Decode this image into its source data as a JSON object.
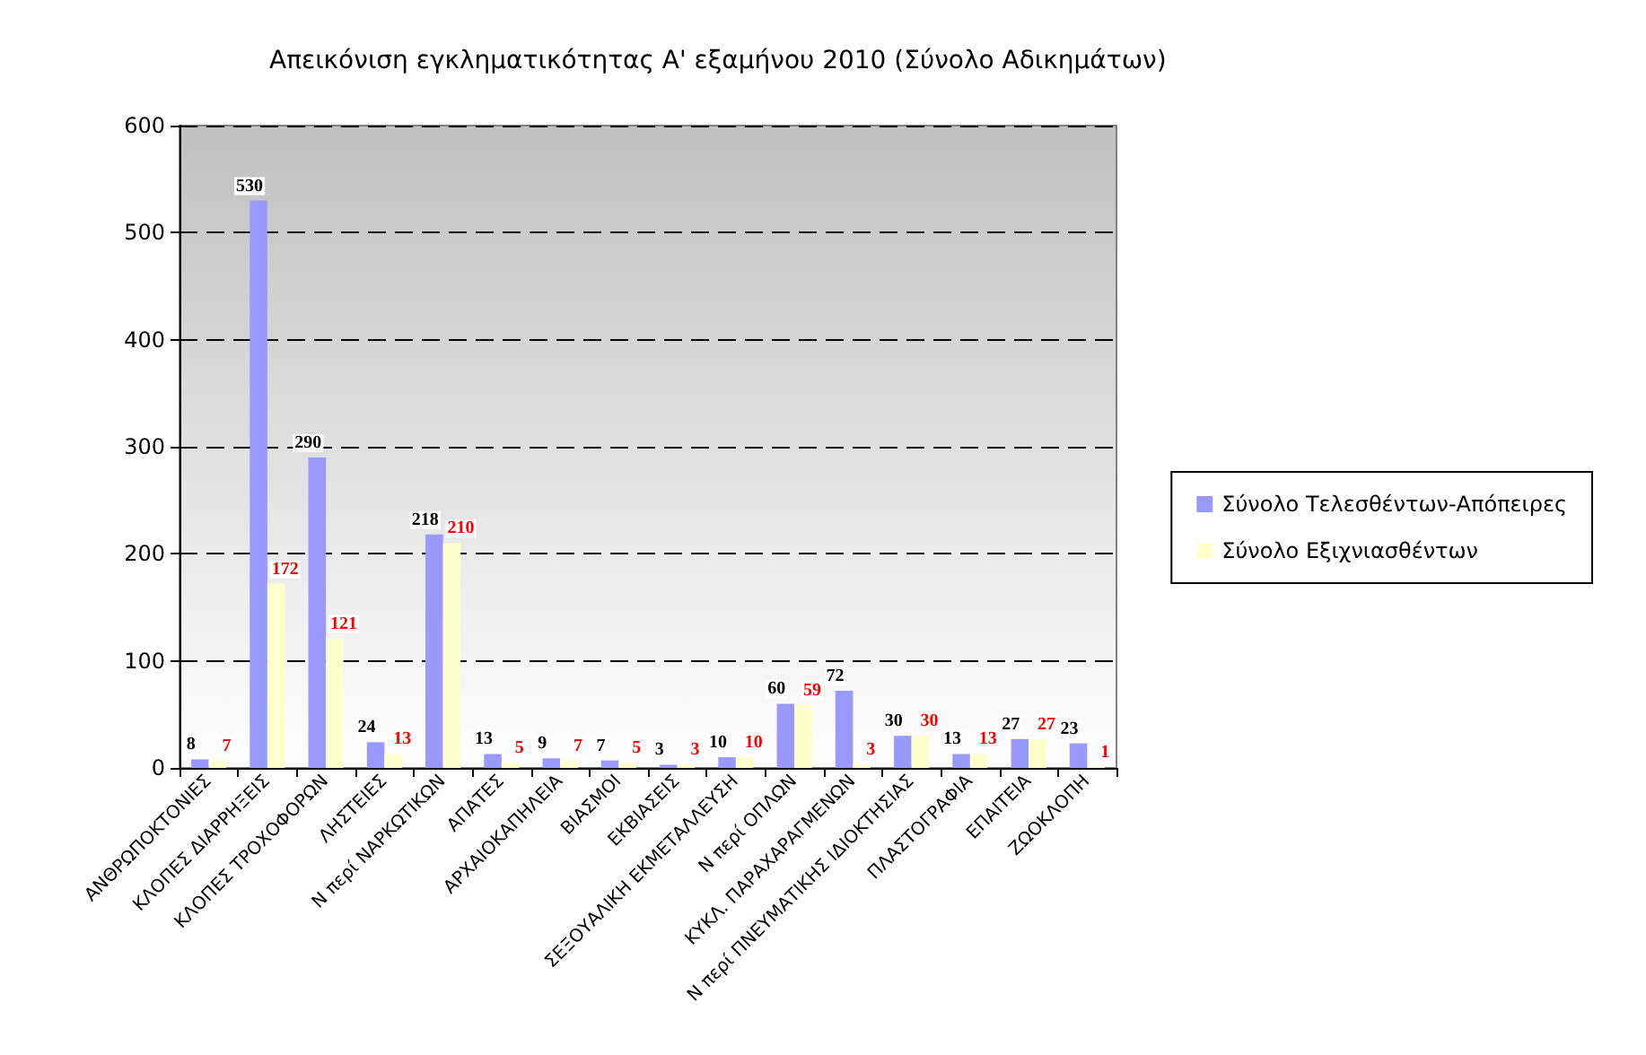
{
  "chart_data": {
    "type": "bar",
    "title": "Απεικόνιση εγκληματικότητας Α' εξαμήνου 2010 (Σύνολο Αδικημάτων)",
    "categories": [
      "ΑΝΘΡΩΠΟΚΤΟΝΙΕΣ",
      "ΚΛΟΠΕΣ ΔΙΑΡΡΗΞΕΙΣ",
      "ΚΛΟΠΕΣ ΤΡΟΧΟΦΟΡΩΝ",
      "ΛΗΣΤΕΙΕΣ",
      "Ν περί ΝΑΡΚΩΤΙΚΩΝ",
      "ΑΠΑΤΕΣ",
      "ΑΡΧΑΙΟΚΑΠΗΛΕΙΑ",
      "ΒΙΑΣΜΟΙ",
      "ΕΚΒΙΑΣΕΙΣ",
      "ΣΕΞΟΥΑΛΙΚΗ ΕΚΜΕΤΑΛΛΕΥΣΗ",
      "Ν περί ΟΠΛΩΝ",
      "ΚΥΚΛ. ΠΑΡΑΧΑΡΑΓΜΕΝΩΝ",
      "Ν περί ΠΝΕΥΜΑΤΙΚΗΣ ΙΔΙΟΚΤΗΣΙΑΣ",
      "ΠΛΑΣΤΟΓΡΑΦΙΑ",
      "ΕΠΑΙΤΕΙΑ",
      "ΖΩΟΚΛΟΠΗ"
    ],
    "series": [
      {
        "name": "Σύνολο Τελεσθέντων-Απόπειρες",
        "color": "#9999ff",
        "values": [
          8,
          530,
          290,
          24,
          218,
          13,
          9,
          7,
          3,
          10,
          60,
          72,
          30,
          13,
          27,
          23
        ]
      },
      {
        "name": "Σύνολο Εξιχνιασθέντων",
        "color": "#ffffcc",
        "values": [
          7,
          172,
          121,
          13,
          210,
          5,
          7,
          5,
          3,
          10,
          59,
          3,
          30,
          13,
          27,
          1
        ]
      }
    ],
    "ylim": [
      0,
      600
    ],
    "yticks": [
      0,
      100,
      200,
      300,
      400,
      500,
      600
    ],
    "grid": "y",
    "legend": "right",
    "data_labels": true
  }
}
